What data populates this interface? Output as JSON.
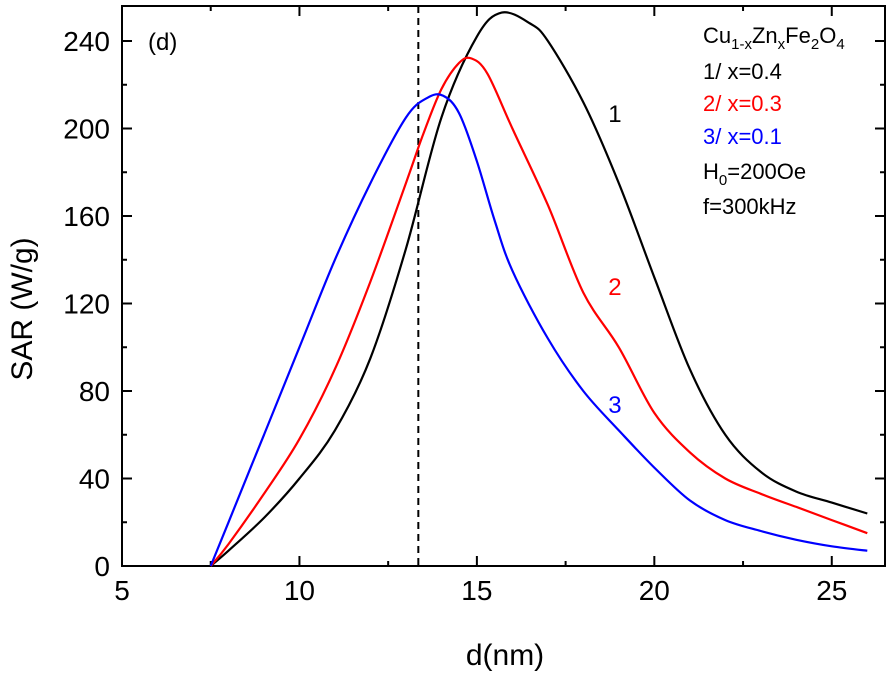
{
  "chart_data": {
    "type": "line",
    "panel_label": "(d)",
    "xlabel": "d(nm)",
    "ylabel": "SAR (W/g)",
    "xlim": [
      5,
      26.5
    ],
    "ylim": [
      0,
      256
    ],
    "xticks": [
      5,
      10,
      15,
      20,
      25
    ],
    "yticks": [
      0,
      40,
      80,
      120,
      160,
      200,
      240
    ],
    "grid": false,
    "reference_line": {
      "x": 13.35,
      "style": "dashed"
    },
    "legend": {
      "position": "top-right",
      "title": {
        "base": "Cu",
        "sub1": "1-x",
        "mid": "Zn",
        "sub2": "x",
        "end": "Fe",
        "sub3": "2",
        "tail": "O",
        "sub4": "4"
      },
      "entries": [
        {
          "text": "1/ x=0.4",
          "color": "#000000"
        },
        {
          "text": "2/ x=0.3",
          "color": "#ff0000"
        },
        {
          "text": "3/ x=0.1",
          "color": "#0000ff"
        }
      ],
      "h0": {
        "base": "H",
        "sub": "0",
        "rest": "=200Oe"
      },
      "freq": "f=300kHz"
    },
    "series": [
      {
        "name": "1",
        "color": "#000000",
        "label_at": [
          18.9,
          207
        ],
        "x": [
          7.5,
          8,
          9,
          10,
          11,
          12,
          13,
          14,
          15,
          15.7,
          16.5,
          17,
          18,
          19,
          20,
          21,
          22,
          23,
          24,
          25,
          26
        ],
        "y": [
          0,
          7,
          22,
          40,
          62,
          95,
          145,
          205,
          242,
          253,
          248,
          240,
          212,
          175,
          132,
          90,
          60,
          43,
          34,
          29,
          24
        ]
      },
      {
        "name": "2",
        "color": "#ff0000",
        "label_at": [
          18.9,
          128
        ],
        "x": [
          7.5,
          8,
          9,
          10,
          11,
          12,
          13,
          13.5,
          14,
          14.5,
          14.85,
          15.3,
          16,
          17,
          18,
          19,
          20,
          21,
          22,
          23,
          24,
          25,
          26
        ],
        "y": [
          0,
          10,
          33,
          58,
          90,
          130,
          175,
          198,
          218,
          230,
          232,
          225,
          200,
          165,
          125,
          100,
          70,
          52,
          40,
          33,
          27,
          21,
          15
        ]
      },
      {
        "name": "3",
        "color": "#0000ff",
        "label_at": [
          18.9,
          74
        ],
        "x": [
          7.5,
          8,
          9,
          10,
          11,
          12,
          13,
          13.6,
          14.05,
          14.5,
          15,
          15.5,
          16,
          17,
          18,
          19,
          20,
          21,
          22,
          23,
          24,
          25,
          26
        ],
        "y": [
          0,
          20,
          60,
          100,
          140,
          175,
          205,
          214,
          215,
          207,
          185,
          158,
          135,
          104,
          80,
          62,
          45,
          30,
          21,
          16,
          12,
          9,
          7
        ]
      }
    ]
  }
}
